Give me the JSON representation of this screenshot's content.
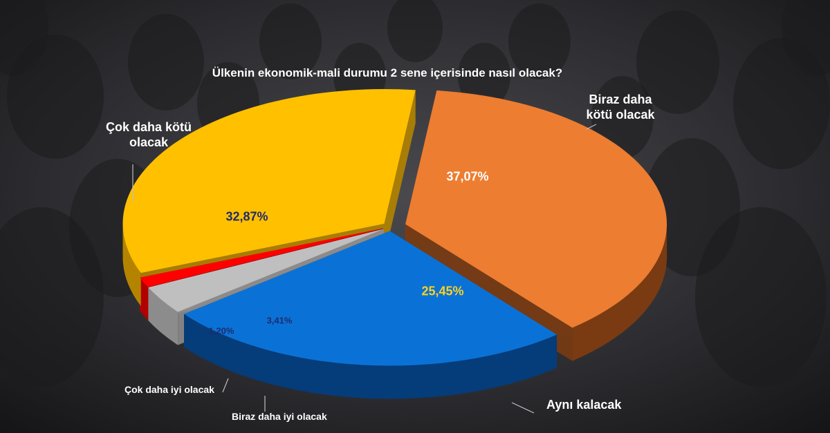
{
  "chart_data": {
    "type": "pie",
    "title": "Ülkenin ekonomik-mali durumu 2 sene içerisinde nasıl olacak?",
    "slices": [
      {
        "label": "Biraz daha kötü olacak",
        "value": 37.07,
        "value_label": "37,07%",
        "color": "#ED7D31",
        "side_color": "#7A3B12",
        "value_color": "#ffffff"
      },
      {
        "label": "Aynı kalacak",
        "value": 25.45,
        "value_label": "25,45%",
        "color": "#0A72D6",
        "side_color": "#053C7A",
        "value_color": "#FFD21F"
      },
      {
        "label": "Biraz daha iyi olacak",
        "value": 3.41,
        "value_label": "3,41%",
        "color": "#BFBFBF",
        "side_color": "#8C8C8C",
        "value_color": "#1F2A6B"
      },
      {
        "label": "Çok daha iyi olacak",
        "value": 1.2,
        "value_label": "1,20%",
        "color": "#FF0000",
        "side_color": "#B00000",
        "value_color": "#1F2A6B"
      },
      {
        "label": "Çok daha kötü olacak",
        "value": 32.87,
        "value_label": "32,87%",
        "color": "#FFC000",
        "side_color": "#B48400",
        "value_color": "#1F2A6B"
      }
    ],
    "legend": "none"
  }
}
